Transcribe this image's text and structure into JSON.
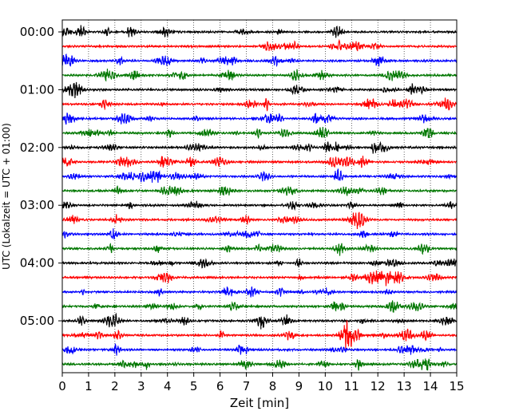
{
  "chart_data": {
    "type": "line",
    "subtype": "helicorder",
    "title": "",
    "xlabel": "Zeit  [min]",
    "ylabel": "UTC (Lokalzeit = UTC + 01:00)",
    "xlim": [
      0,
      15
    ],
    "xticks": [
      "0",
      "1",
      "2",
      "3",
      "4",
      "5",
      "6",
      "7",
      "8",
      "9",
      "10",
      "11",
      "12",
      "13",
      "14",
      "15"
    ],
    "yticks": [
      "00:00",
      "01:00",
      "02:00",
      "03:00",
      "04:00",
      "05:00"
    ],
    "trace_interval_min": 15,
    "trace_count": 24,
    "trace_colors": [
      "#000000",
      "#ff0000",
      "#0000ff",
      "#007700"
    ],
    "grid": "vertical dotted lines at each minute",
    "series": [
      {
        "start": "00:00",
        "color": "#000000"
      },
      {
        "start": "00:15",
        "color": "#ff0000"
      },
      {
        "start": "00:30",
        "color": "#0000ff"
      },
      {
        "start": "00:45",
        "color": "#007700"
      },
      {
        "start": "01:00",
        "color": "#000000"
      },
      {
        "start": "01:15",
        "color": "#ff0000"
      },
      {
        "start": "01:30",
        "color": "#0000ff"
      },
      {
        "start": "01:45",
        "color": "#007700"
      },
      {
        "start": "02:00",
        "color": "#000000"
      },
      {
        "start": "02:15",
        "color": "#ff0000"
      },
      {
        "start": "02:30",
        "color": "#0000ff"
      },
      {
        "start": "02:45",
        "color": "#007700"
      },
      {
        "start": "03:00",
        "color": "#000000"
      },
      {
        "start": "03:15",
        "color": "#ff0000"
      },
      {
        "start": "03:30",
        "color": "#0000ff"
      },
      {
        "start": "03:45",
        "color": "#007700"
      },
      {
        "start": "04:00",
        "color": "#000000"
      },
      {
        "start": "04:15",
        "color": "#ff0000"
      },
      {
        "start": "04:30",
        "color": "#0000ff"
      },
      {
        "start": "04:45",
        "color": "#007700"
      },
      {
        "start": "05:00",
        "color": "#000000"
      },
      {
        "start": "05:15",
        "color": "#ff0000"
      },
      {
        "start": "05:30",
        "color": "#0000ff"
      },
      {
        "start": "05:45",
        "color": "#007700"
      }
    ]
  }
}
